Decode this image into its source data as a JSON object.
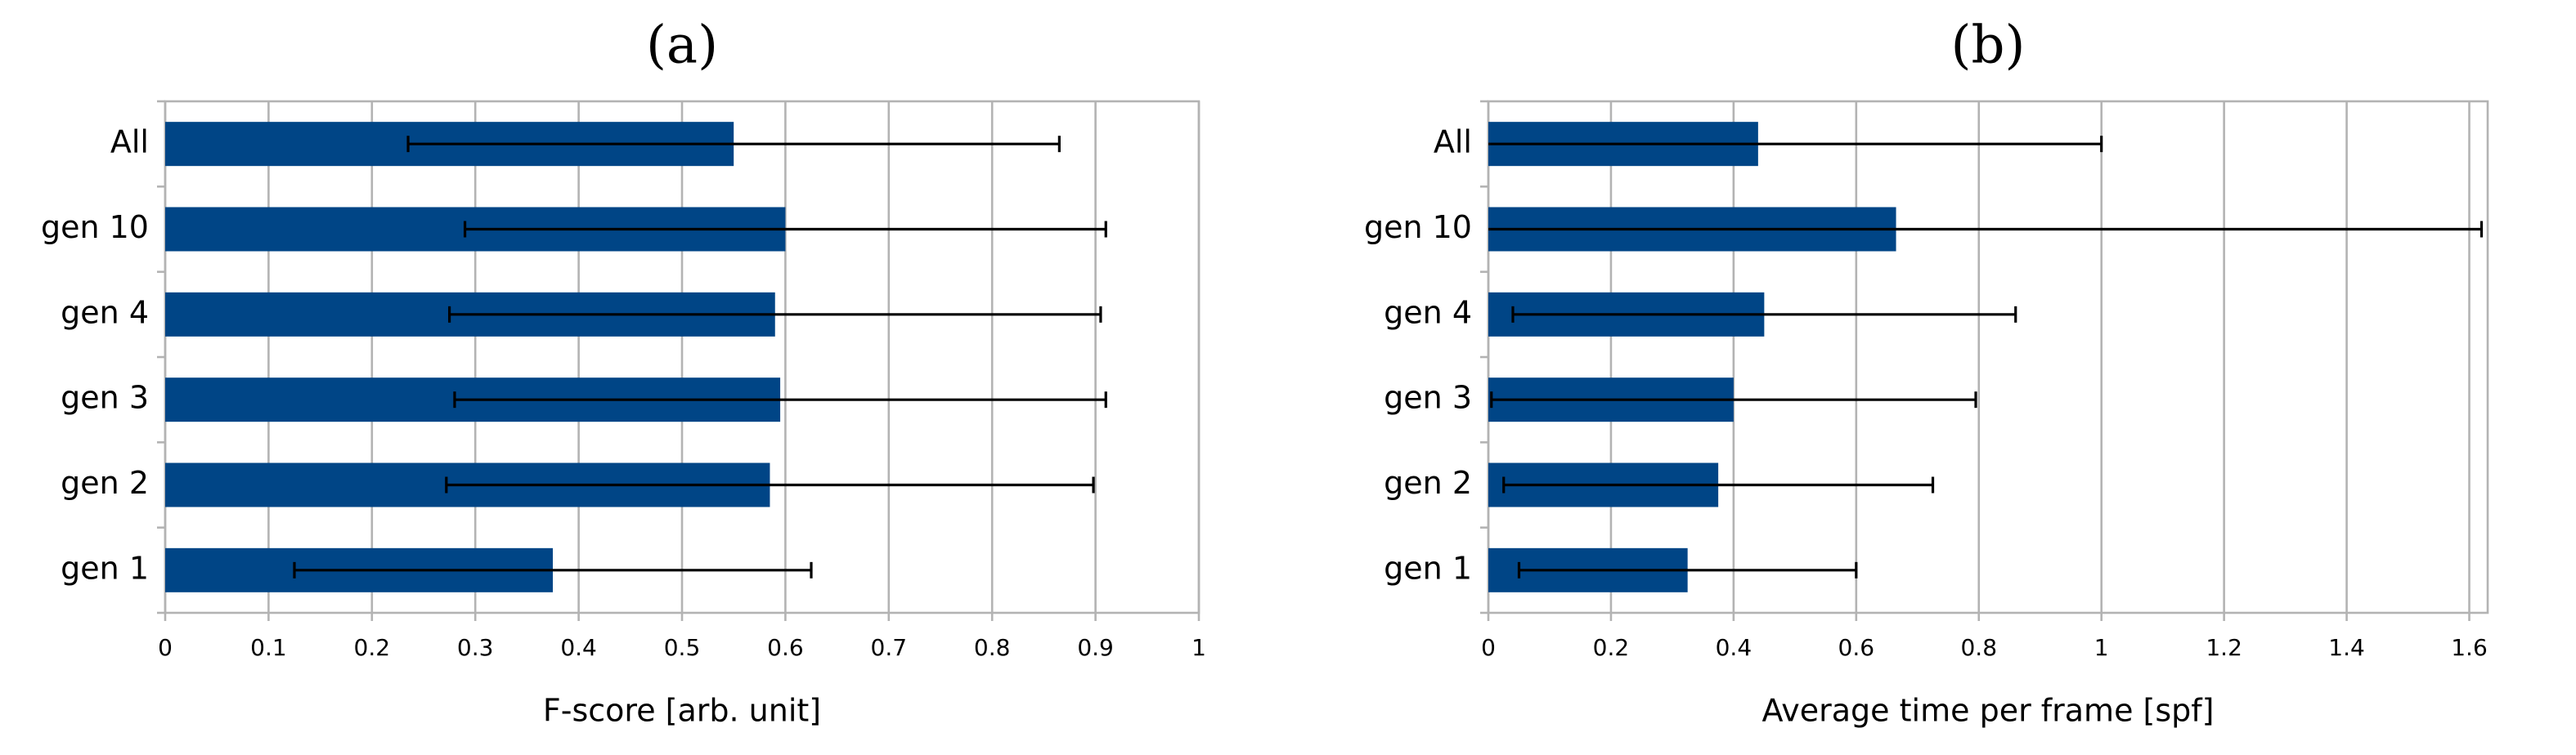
{
  "chart_data": [
    {
      "type": "hbar",
      "title": "(a)",
      "x_label": "F-score [arb. unit]",
      "categories": [
        "All",
        "gen 10",
        "gen 4",
        "gen 3",
        "gen 2",
        "gen 1"
      ],
      "values": [
        0.55,
        0.6,
        0.59,
        0.595,
        0.585,
        0.375
      ],
      "errors": [
        0.315,
        0.31,
        0.315,
        0.315,
        0.313,
        0.25
      ],
      "color": "#004586",
      "xlim": [
        0,
        1
      ],
      "xticks": [
        0,
        0.1,
        0.2,
        0.3,
        0.4,
        0.5,
        0.6,
        0.7,
        0.8,
        0.9,
        1
      ],
      "grid": true
    },
    {
      "type": "hbar",
      "title": "(b)",
      "x_label": "Average time per frame [spf]",
      "categories": [
        "All",
        "gen 10",
        "gen 4",
        "gen 3",
        "gen 2",
        "gen 1"
      ],
      "values": [
        0.44,
        0.665,
        0.45,
        0.4,
        0.375,
        0.325
      ],
      "errors": [
        0.56,
        0.955,
        0.41,
        0.395,
        0.35,
        0.275
      ],
      "color": "#004586",
      "xlim": [
        0,
        1.63
      ],
      "xticks": [
        0,
        0.2,
        0.4,
        0.6,
        0.8,
        1,
        1.2,
        1.4,
        1.6
      ],
      "grid": true
    }
  ]
}
